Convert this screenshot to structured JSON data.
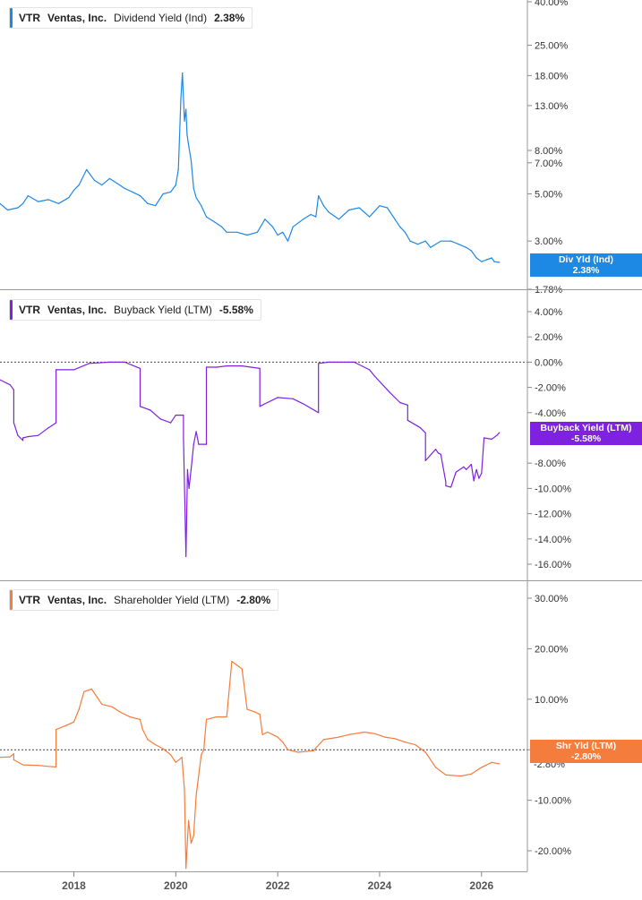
{
  "colors": {
    "dividend": "#1E88E5",
    "buyback": "#7E22E0",
    "shareholder": "#F47C3C"
  },
  "panels": [
    {
      "ticker": "VTR",
      "company": "Ventas, Inc.",
      "metric": "Dividend Yield (Ind)",
      "value": "2.38%",
      "tag_label": "Div Yld (Ind)",
      "tag_value": "2.38%"
    },
    {
      "ticker": "VTR",
      "company": "Ventas, Inc.",
      "metric": "Buyback Yield (LTM)",
      "value": "-5.58%",
      "tag_label": "Buyback Yield (LTM)",
      "tag_value": "-5.58%"
    },
    {
      "ticker": "VTR",
      "company": "Ventas, Inc.",
      "metric": "Shareholder Yield (LTM)",
      "value": "-2.80%",
      "tag_label": "Shr Yld (LTM)",
      "tag_value": "-2.80%"
    }
  ],
  "chart_data": [
    {
      "type": "line",
      "title": "VTR Ventas, Inc. Dividend Yield (Ind) 2.38%",
      "scale": "log",
      "ylim": [
        1.78,
        40
      ],
      "yticks": [
        {
          "v": 40,
          "label": "40.00%"
        },
        {
          "v": 25,
          "label": "25.00%"
        },
        {
          "v": 18,
          "label": "18.00%"
        },
        {
          "v": 13,
          "label": "13.00%"
        },
        {
          "v": 8,
          "label": "8.00%"
        },
        {
          "v": 7,
          "label": "7.00%"
        },
        {
          "v": 5,
          "label": "5.00%"
        },
        {
          "v": 3,
          "label": "3.00%"
        },
        {
          "v": 2.38,
          "label": "2.38%"
        },
        {
          "v": 1.78,
          "label": "1.78%"
        }
      ],
      "series": [
        {
          "x": [
            2016.55,
            2016.7,
            2016.9,
            2017.0,
            2017.1,
            2017.3,
            2017.5,
            2017.7,
            2017.9,
            2018.0,
            2018.1,
            2018.25,
            2018.4,
            2018.55,
            2018.7,
            2018.85,
            2019.0,
            2019.15,
            2019.3,
            2019.45,
            2019.6,
            2019.75,
            2019.9,
            2020.0,
            2020.05,
            2020.1,
            2020.13,
            2020.17,
            2020.2,
            2020.22,
            2020.25,
            2020.3,
            2020.35,
            2020.4,
            2020.45,
            2020.5,
            2020.6,
            2020.75,
            2020.9,
            2021.0,
            2021.2,
            2021.4,
            2021.6,
            2021.75,
            2021.9,
            2022.0,
            2022.1,
            2022.2,
            2022.3,
            2022.5,
            2022.65,
            2022.75,
            2022.8,
            2022.9,
            2023.0,
            2023.2,
            2023.4,
            2023.6,
            2023.8,
            2024.0,
            2024.15,
            2024.3,
            2024.4,
            2024.5,
            2024.6,
            2024.75,
            2024.9,
            2025.0,
            2025.2,
            2025.4,
            2025.55,
            2025.7,
            2025.8,
            2025.9,
            2026.0,
            2026.1,
            2026.2,
            2026.25,
            2026.35
          ],
          "y": [
            4.5,
            4.2,
            4.3,
            4.5,
            4.9,
            4.6,
            4.7,
            4.5,
            4.8,
            5.2,
            5.5,
            6.5,
            5.8,
            5.5,
            5.9,
            5.6,
            5.3,
            5.1,
            4.9,
            4.5,
            4.4,
            5.0,
            5.1,
            5.5,
            6.5,
            14.0,
            18.5,
            11.0,
            12.5,
            9.5,
            8.5,
            7.2,
            5.3,
            4.8,
            4.6,
            4.4,
            3.9,
            3.7,
            3.5,
            3.3,
            3.3,
            3.2,
            3.3,
            3.8,
            3.5,
            3.2,
            3.3,
            3.0,
            3.5,
            3.8,
            4.0,
            3.9,
            4.9,
            4.4,
            4.1,
            3.8,
            4.2,
            4.3,
            3.9,
            4.4,
            4.3,
            3.8,
            3.5,
            3.3,
            3.0,
            2.9,
            3.0,
            2.8,
            3.0,
            3.0,
            2.9,
            2.8,
            2.7,
            2.5,
            2.4,
            2.45,
            2.5,
            2.4,
            2.38
          ]
        }
      ]
    },
    {
      "type": "line",
      "title": "VTR Ventas, Inc. Buyback Yield (LTM) -5.58%",
      "ylim": [
        -16.5,
        4.5
      ],
      "yticks": [
        {
          "v": 4,
          "label": "4.00%"
        },
        {
          "v": 2,
          "label": "2.00%"
        },
        {
          "v": 0,
          "label": "0.00%"
        },
        {
          "v": -2,
          "label": "-2.00%"
        },
        {
          "v": -4,
          "label": "-4.00%"
        },
        {
          "v": -5.58,
          "label": "-5.58%"
        },
        {
          "v": -8,
          "label": "-8.00%"
        },
        {
          "v": -10,
          "label": "-10.00%"
        },
        {
          "v": -12,
          "label": "-12.00%"
        },
        {
          "v": -14,
          "label": "-14.00%"
        },
        {
          "v": -16,
          "label": "-16.00%"
        }
      ],
      "series": [
        {
          "x": [
            2016.55,
            2016.75,
            2016.82,
            2016.82,
            2016.9,
            2017.0,
            2017.0,
            2017.1,
            2017.3,
            2017.5,
            2017.65,
            2017.65,
            2018.0,
            2018.3,
            2018.7,
            2019.0,
            2019.3,
            2019.3,
            2019.5,
            2019.7,
            2019.9,
            2020.0,
            2020.15,
            2020.15,
            2020.2,
            2020.23,
            2020.26,
            2020.3,
            2020.35,
            2020.4,
            2020.45,
            2020.55,
            2020.6,
            2020.6,
            2020.8,
            2021.0,
            2021.3,
            2021.65,
            2021.65,
            2021.75,
            2022.0,
            2022.3,
            2022.5,
            2022.8,
            2022.8,
            2023.0,
            2023.5,
            2023.8,
            2023.9,
            2024.2,
            2024.4,
            2024.55,
            2024.55,
            2024.8,
            2024.9,
            2024.9,
            2025.1,
            2025.15,
            2025.2,
            2025.3,
            2025.3,
            2025.4,
            2025.5,
            2025.65,
            2025.7,
            2025.8,
            2025.85,
            2025.9,
            2025.95,
            2026.0,
            2026.05,
            2026.2,
            2026.3,
            2026.35
          ],
          "y": [
            -1.4,
            -1.8,
            -2.2,
            -4.8,
            -5.8,
            -6.2,
            -6.0,
            -5.9,
            -5.8,
            -5.2,
            -4.8,
            -0.6,
            -0.6,
            -0.1,
            0.0,
            0.0,
            -0.5,
            -3.5,
            -3.8,
            -4.5,
            -4.8,
            -4.2,
            -4.2,
            -6.0,
            -15.4,
            -8.5,
            -10.0,
            -8.5,
            -6.5,
            -5.5,
            -6.5,
            -6.5,
            -6.5,
            -0.4,
            -0.4,
            -0.3,
            -0.3,
            -0.5,
            -3.5,
            -3.3,
            -2.8,
            -2.9,
            -3.3,
            -4.0,
            -0.1,
            0.0,
            0.0,
            -0.6,
            -1.1,
            -2.4,
            -3.2,
            -3.4,
            -4.6,
            -5.2,
            -5.6,
            -7.8,
            -6.9,
            -7.2,
            -7.3,
            -9.5,
            -9.8,
            -9.9,
            -8.7,
            -8.3,
            -8.5,
            -8.1,
            -9.4,
            -8.5,
            -9.2,
            -8.8,
            -6.0,
            -6.1,
            -5.8,
            -5.58
          ]
        }
      ]
    },
    {
      "type": "line",
      "title": "VTR Ventas, Inc. Shareholder Yield (LTM) -2.80%",
      "ylim": [
        -27,
        33
      ],
      "yticks": [
        {
          "v": 30,
          "label": "30.00%"
        },
        {
          "v": 20,
          "label": "20.00%"
        },
        {
          "v": 10,
          "label": "10.00%"
        },
        {
          "v": 0,
          "label": "0.00%"
        },
        {
          "v": -2.8,
          "label": "-2.80%"
        },
        {
          "v": -10,
          "label": "-10.00%"
        },
        {
          "v": -20,
          "label": "-20.00%"
        }
      ],
      "series": [
        {
          "x": [
            2016.55,
            2016.75,
            2016.82,
            2016.82,
            2017.0,
            2017.3,
            2017.5,
            2017.65,
            2017.65,
            2017.85,
            2018.0,
            2018.1,
            2018.2,
            2018.35,
            2018.45,
            2018.55,
            2018.75,
            2018.9,
            2019.1,
            2019.3,
            2019.35,
            2019.45,
            2019.6,
            2019.75,
            2019.9,
            2020.0,
            2020.12,
            2020.17,
            2020.2,
            2020.25,
            2020.3,
            2020.35,
            2020.4,
            2020.5,
            2020.55,
            2020.6,
            2020.8,
            2021.0,
            2021.1,
            2021.3,
            2021.4,
            2021.55,
            2021.65,
            2021.7,
            2021.8,
            2022.0,
            2022.1,
            2022.2,
            2022.4,
            2022.7,
            2022.9,
            2023.2,
            2023.4,
            2023.7,
            2023.9,
            2024.1,
            2024.3,
            2024.5,
            2024.7,
            2024.9,
            2025.1,
            2025.3,
            2025.6,
            2025.8,
            2026.0,
            2026.2,
            2026.35
          ],
          "y": [
            -1.5,
            -1.4,
            -0.8,
            -2.0,
            -3.0,
            -3.1,
            -3.3,
            -3.4,
            4.0,
            4.8,
            5.5,
            8.0,
            11.5,
            12.0,
            10.5,
            9.0,
            8.5,
            7.5,
            6.5,
            6.0,
            4.0,
            2.0,
            1.0,
            0.2,
            -1.0,
            -2.5,
            -1.5,
            -8.0,
            -23.5,
            -14.0,
            -18.5,
            -17.0,
            -9.0,
            -1.0,
            0.0,
            6.0,
            6.5,
            6.5,
            17.5,
            16.0,
            8.0,
            7.5,
            7.0,
            3.0,
            3.5,
            2.5,
            1.5,
            0.0,
            -0.5,
            -0.2,
            2.0,
            2.5,
            3.0,
            3.5,
            3.2,
            2.5,
            2.2,
            1.5,
            1.0,
            -0.5,
            -3.5,
            -5.0,
            -5.2,
            -4.8,
            -3.5,
            -2.5,
            -2.8
          ]
        }
      ]
    }
  ],
  "xaxis": {
    "labels": [
      "2018",
      "2020",
      "2022",
      "2024",
      "2026"
    ],
    "values": [
      2018,
      2020,
      2022,
      2024,
      2026
    ]
  }
}
